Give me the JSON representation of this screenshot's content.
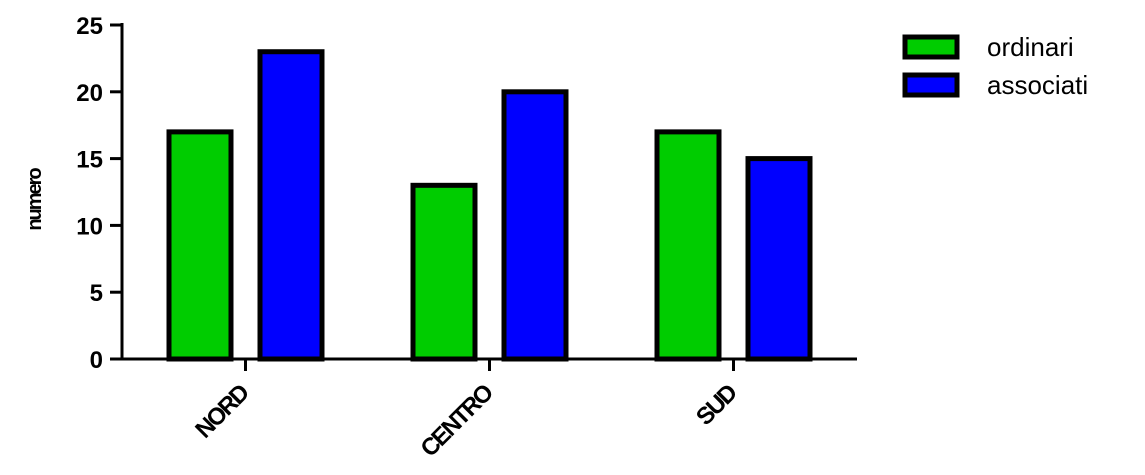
{
  "chart_data": {
    "type": "bar",
    "title": "",
    "xlabel": "",
    "ylabel": "numero",
    "categories": [
      "NORD",
      "CENTRO",
      "SUD"
    ],
    "series": [
      {
        "name": "ordinari",
        "color": "#00cc00",
        "values": [
          17,
          13,
          17
        ]
      },
      {
        "name": "associati",
        "color": "#0000ff",
        "values": [
          23,
          20,
          15
        ]
      }
    ],
    "ylim": [
      0,
      25
    ],
    "yticks": [
      "0",
      "5",
      "10",
      "15",
      "20",
      "25"
    ],
    "grid": false,
    "legend": "top-right"
  }
}
